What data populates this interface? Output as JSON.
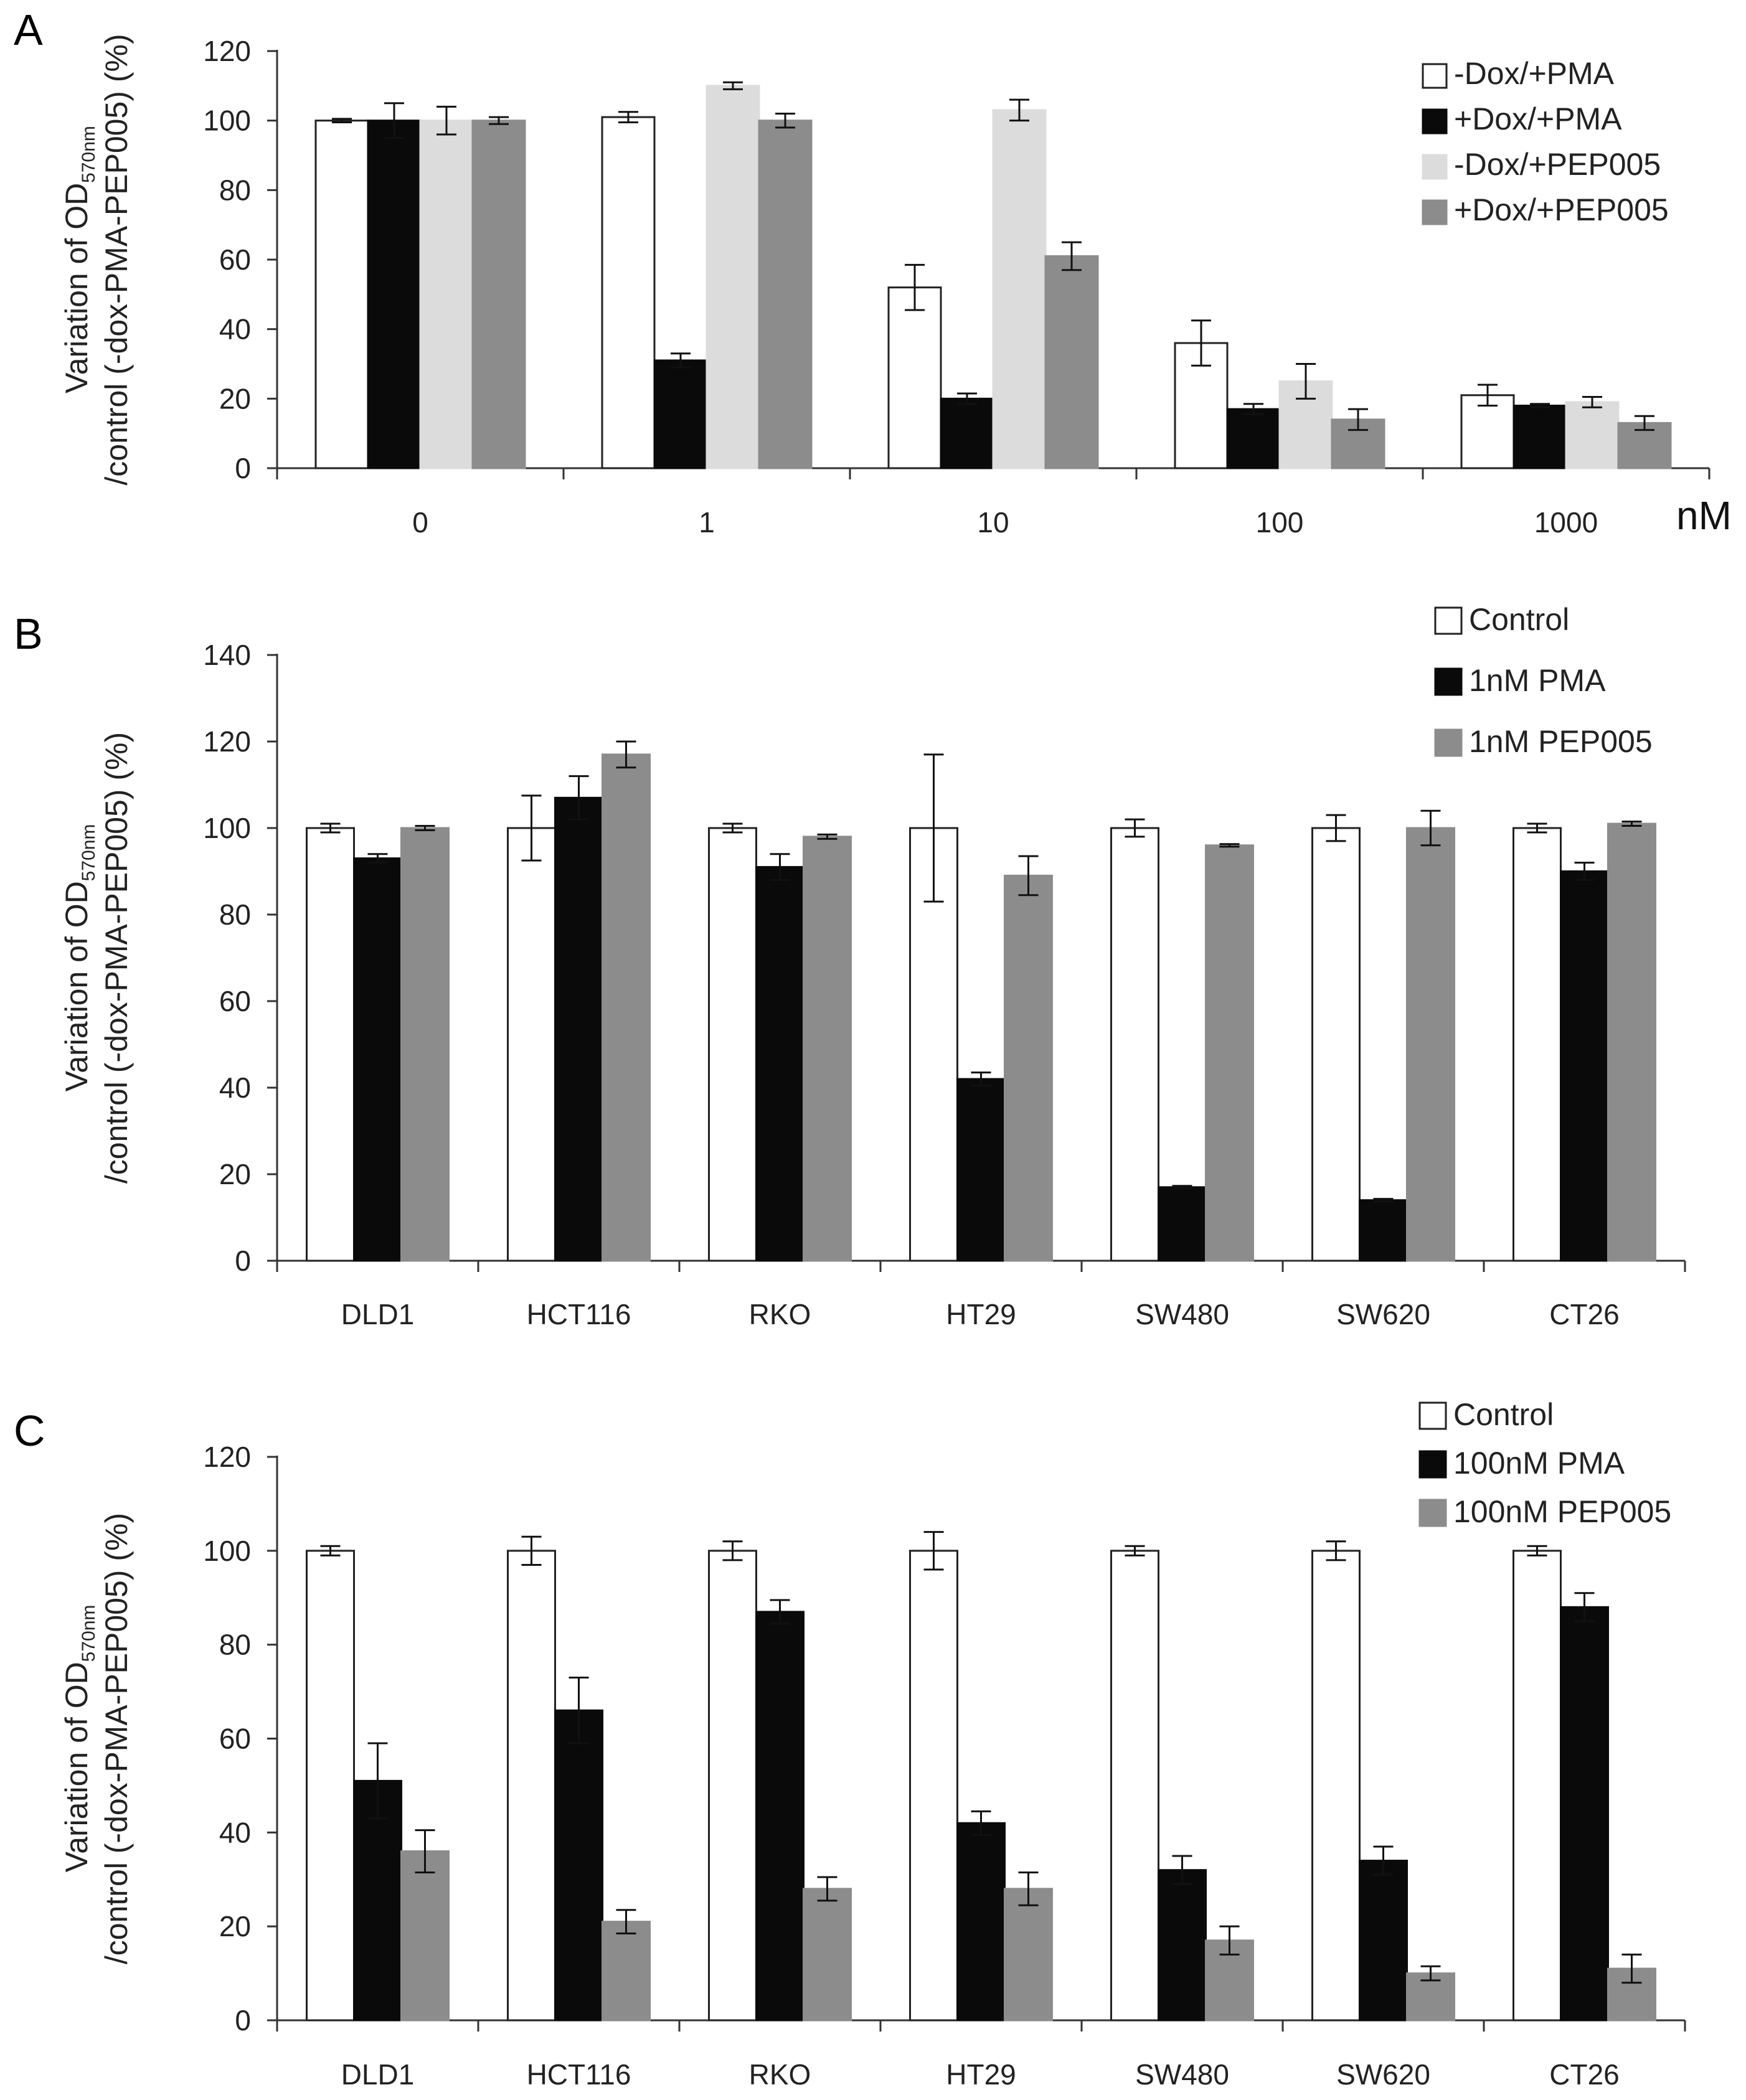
{
  "chart_data": [
    {
      "type": "bar",
      "panel": "A",
      "title": "",
      "xlabel": "",
      "unit_label": "nM",
      "ylabel_line1": "Variation of OD",
      "ylabel_sub": "570nm",
      "ylabel_line2": "/control (-dox-PMA-PEP005) (%)",
      "ylim": [
        0,
        120
      ],
      "yticks": [
        "0",
        "20",
        "40",
        "60",
        "80",
        "100",
        "120"
      ],
      "categories": [
        "0",
        "1",
        "10",
        "100",
        "1000"
      ],
      "series": [
        {
          "name": "-Dox/+PMA",
          "color": "#ffffff",
          "values": [
            100,
            101,
            52,
            36,
            21
          ],
          "errors": [
            0.5,
            1.5,
            6.5,
            6.5,
            3
          ]
        },
        {
          "name": "+Dox/+PMA",
          "color": "#0a0a0a",
          "values": [
            100,
            31,
            20,
            17,
            18
          ],
          "errors": [
            5,
            2,
            1.5,
            1.5,
            0.5
          ]
        },
        {
          "name": "-Dox/+PEP005",
          "color": "#dcdcdc",
          "values": [
            100,
            110,
            103,
            25,
            19
          ],
          "errors": [
            4,
            1,
            3,
            5,
            1.5
          ]
        },
        {
          "name": "+Dox/+PEP005",
          "color": "#8c8c8c",
          "values": [
            100,
            100,
            61,
            14,
            13
          ],
          "errors": [
            1,
            2,
            4,
            3,
            2
          ]
        }
      ]
    },
    {
      "type": "bar",
      "panel": "B",
      "title": "",
      "xlabel": "",
      "ylabel_line1": "Variation of OD",
      "ylabel_sub": "570nm",
      "ylabel_line2": "/control (-dox-PMA-PEP005) (%)",
      "ylim": [
        0,
        140
      ],
      "yticks": [
        "0",
        "20",
        "40",
        "60",
        "80",
        "100",
        "120",
        "140"
      ],
      "categories": [
        "DLD1",
        "HCT116",
        "RKO",
        "HT29",
        "SW480",
        "SW620",
        "CT26"
      ],
      "series": [
        {
          "name": "Control",
          "color": "#ffffff",
          "values": [
            100,
            100,
            100,
            100,
            100,
            100,
            100
          ],
          "errors": [
            1,
            7.5,
            1,
            17,
            2,
            3,
            1
          ]
        },
        {
          "name": "1nM PMA",
          "color": "#0a0a0a",
          "values": [
            93,
            107,
            91,
            42,
            17,
            14,
            90
          ],
          "errors": [
            1,
            5,
            3,
            1.5,
            0.3,
            0.3,
            2
          ]
        },
        {
          "name": "1nM PEP005",
          "color": "#8c8c8c",
          "values": [
            100,
            117,
            98,
            89,
            96,
            100,
            101
          ],
          "errors": [
            0.5,
            3,
            0.5,
            4.5,
            0.3,
            4,
            0.5
          ]
        }
      ]
    },
    {
      "type": "bar",
      "panel": "C",
      "title": "",
      "xlabel": "",
      "ylabel_line1": "Variation of OD",
      "ylabel_sub": "570nm",
      "ylabel_line2": "/control (-dox-PMA-PEP005) (%)",
      "ylim": [
        0,
        120
      ],
      "yticks": [
        "0",
        "20",
        "40",
        "60",
        "80",
        "100",
        "120"
      ],
      "categories": [
        "DLD1",
        "HCT116",
        "RKO",
        "HT29",
        "SW480",
        "SW620",
        "CT26"
      ],
      "series": [
        {
          "name": "Control",
          "color": "#ffffff",
          "values": [
            100,
            100,
            100,
            100,
            100,
            100,
            100
          ],
          "errors": [
            1,
            3,
            2,
            4,
            1,
            2,
            1
          ]
        },
        {
          "name": "100nM PMA",
          "color": "#0a0a0a",
          "values": [
            51,
            66,
            87,
            42,
            32,
            34,
            88
          ],
          "errors": [
            8,
            7,
            2.5,
            2.5,
            3,
            3,
            3
          ]
        },
        {
          "name": "100nM PEP005",
          "color": "#8c8c8c",
          "values": [
            36,
            21,
            28,
            28,
            17,
            10,
            11
          ],
          "errors": [
            4.5,
            2.5,
            2.5,
            3.5,
            3,
            1.5,
            3
          ]
        }
      ]
    }
  ]
}
